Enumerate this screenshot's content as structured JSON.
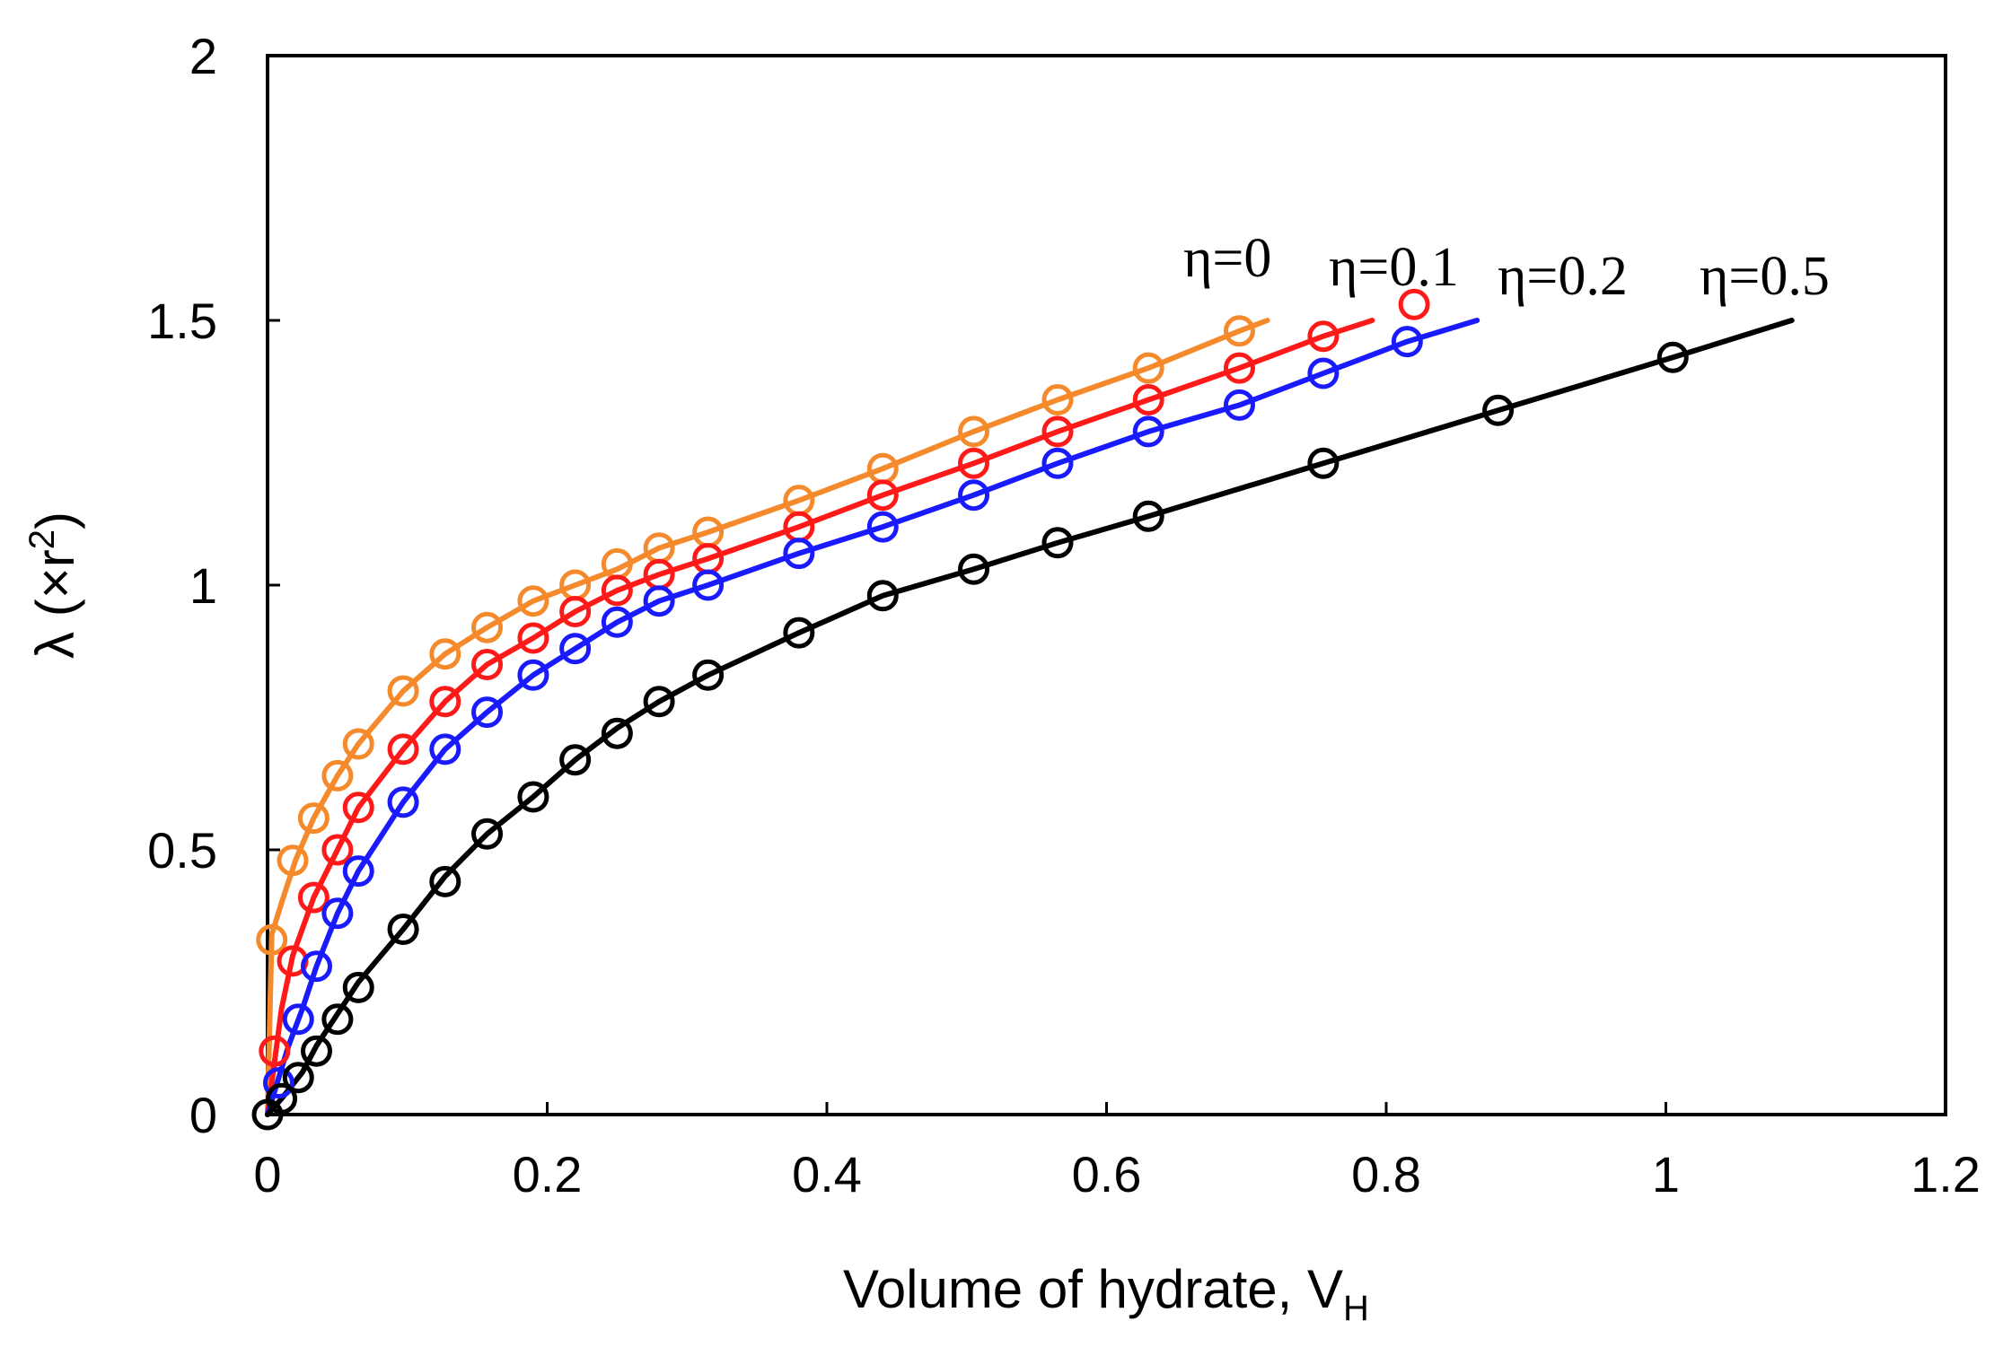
{
  "chart_data": {
    "type": "scatter",
    "xlim": [
      0,
      1.2
    ],
    "ylim": [
      0,
      2
    ],
    "x_ticks": [
      "0",
      "0.2",
      "0.4",
      "0.6",
      "0.8",
      "1",
      "1.2"
    ],
    "y_ticks": [
      "0",
      "0.5",
      "1",
      "1.5",
      "2"
    ],
    "xlabel": {
      "main": "Volume of hydrate, V",
      "sub": "H"
    },
    "ylabel": {
      "pre": "λ (×r",
      "sup": "2",
      "post": ")"
    },
    "grid": false,
    "series": [
      {
        "name": "η=0",
        "color": "#F58A2C",
        "line": [
          [
            0,
            0
          ],
          [
            0.003,
            0.34
          ],
          [
            0.01,
            0.4
          ],
          [
            0.02,
            0.48
          ],
          [
            0.033,
            0.56
          ],
          [
            0.05,
            0.64
          ],
          [
            0.065,
            0.7
          ],
          [
            0.097,
            0.8
          ],
          [
            0.127,
            0.87
          ],
          [
            0.157,
            0.92
          ],
          [
            0.19,
            0.97
          ],
          [
            0.22,
            1.0
          ],
          [
            0.25,
            1.03
          ],
          [
            0.28,
            1.07
          ],
          [
            0.315,
            1.1
          ],
          [
            0.38,
            1.16
          ],
          [
            0.44,
            1.22
          ],
          [
            0.505,
            1.29
          ],
          [
            0.565,
            1.35
          ],
          [
            0.63,
            1.41
          ],
          [
            0.695,
            1.48
          ],
          [
            0.715,
            1.5
          ]
        ],
        "points": [
          [
            0.003,
            0.33
          ],
          [
            0.018,
            0.48
          ],
          [
            0.033,
            0.56
          ],
          [
            0.05,
            0.64
          ],
          [
            0.065,
            0.7
          ],
          [
            0.097,
            0.8
          ],
          [
            0.127,
            0.87
          ],
          [
            0.157,
            0.92
          ],
          [
            0.19,
            0.97
          ],
          [
            0.22,
            1.0
          ],
          [
            0.25,
            1.04
          ],
          [
            0.28,
            1.07
          ],
          [
            0.315,
            1.1
          ],
          [
            0.38,
            1.16
          ],
          [
            0.44,
            1.22
          ],
          [
            0.505,
            1.29
          ],
          [
            0.565,
            1.35
          ],
          [
            0.63,
            1.41
          ],
          [
            0.695,
            1.48
          ]
        ]
      },
      {
        "name": "η=0.1",
        "color": "#FF1A1A",
        "line": [
          [
            0,
            0
          ],
          [
            0.005,
            0.1
          ],
          [
            0.01,
            0.2
          ],
          [
            0.018,
            0.3
          ],
          [
            0.033,
            0.41
          ],
          [
            0.05,
            0.5
          ],
          [
            0.065,
            0.58
          ],
          [
            0.097,
            0.69
          ],
          [
            0.127,
            0.78
          ],
          [
            0.157,
            0.85
          ],
          [
            0.19,
            0.9
          ],
          [
            0.22,
            0.95
          ],
          [
            0.25,
            0.99
          ],
          [
            0.28,
            1.02
          ],
          [
            0.315,
            1.05
          ],
          [
            0.38,
            1.11
          ],
          [
            0.44,
            1.17
          ],
          [
            0.505,
            1.23
          ],
          [
            0.565,
            1.29
          ],
          [
            0.63,
            1.35
          ],
          [
            0.695,
            1.41
          ],
          [
            0.755,
            1.47
          ],
          [
            0.79,
            1.5
          ]
        ],
        "points": [
          [
            0.005,
            0.12
          ],
          [
            0.018,
            0.29
          ],
          [
            0.033,
            0.41
          ],
          [
            0.05,
            0.5
          ],
          [
            0.065,
            0.58
          ],
          [
            0.097,
            0.69
          ],
          [
            0.127,
            0.78
          ],
          [
            0.157,
            0.85
          ],
          [
            0.19,
            0.9
          ],
          [
            0.22,
            0.95
          ],
          [
            0.25,
            0.99
          ],
          [
            0.28,
            1.02
          ],
          [
            0.315,
            1.05
          ],
          [
            0.38,
            1.11
          ],
          [
            0.44,
            1.17
          ],
          [
            0.505,
            1.23
          ],
          [
            0.565,
            1.29
          ],
          [
            0.63,
            1.35
          ],
          [
            0.695,
            1.41
          ],
          [
            0.755,
            1.47
          ],
          [
            0.82,
            1.53
          ]
        ]
      },
      {
        "name": "η=0.2",
        "color": "#1A1AFF",
        "line": [
          [
            0,
            0
          ],
          [
            0.008,
            0.07
          ],
          [
            0.015,
            0.13
          ],
          [
            0.025,
            0.2
          ],
          [
            0.035,
            0.28
          ],
          [
            0.05,
            0.38
          ],
          [
            0.065,
            0.46
          ],
          [
            0.097,
            0.59
          ],
          [
            0.127,
            0.69
          ],
          [
            0.157,
            0.76
          ],
          [
            0.19,
            0.83
          ],
          [
            0.22,
            0.88
          ],
          [
            0.25,
            0.93
          ],
          [
            0.28,
            0.97
          ],
          [
            0.315,
            1.0
          ],
          [
            0.38,
            1.06
          ],
          [
            0.44,
            1.11
          ],
          [
            0.505,
            1.17
          ],
          [
            0.565,
            1.23
          ],
          [
            0.63,
            1.29
          ],
          [
            0.695,
            1.34
          ],
          [
            0.755,
            1.4
          ],
          [
            0.815,
            1.46
          ],
          [
            0.865,
            1.5
          ]
        ],
        "points": [
          [
            0.008,
            0.06
          ],
          [
            0.022,
            0.18
          ],
          [
            0.035,
            0.28
          ],
          [
            0.05,
            0.38
          ],
          [
            0.065,
            0.46
          ],
          [
            0.097,
            0.59
          ],
          [
            0.127,
            0.69
          ],
          [
            0.157,
            0.76
          ],
          [
            0.19,
            0.83
          ],
          [
            0.22,
            0.88
          ],
          [
            0.25,
            0.93
          ],
          [
            0.28,
            0.97
          ],
          [
            0.315,
            1.0
          ],
          [
            0.38,
            1.06
          ],
          [
            0.44,
            1.11
          ],
          [
            0.505,
            1.17
          ],
          [
            0.565,
            1.23
          ],
          [
            0.63,
            1.29
          ],
          [
            0.695,
            1.34
          ],
          [
            0.755,
            1.4
          ],
          [
            0.815,
            1.46
          ]
        ]
      },
      {
        "name": "η=0.5",
        "color": "#000000",
        "line": [
          [
            0,
            0
          ],
          [
            0.01,
            0.03
          ],
          [
            0.025,
            0.08
          ],
          [
            0.035,
            0.13
          ],
          [
            0.05,
            0.19
          ],
          [
            0.065,
            0.25
          ],
          [
            0.097,
            0.35
          ],
          [
            0.127,
            0.45
          ],
          [
            0.157,
            0.53
          ],
          [
            0.19,
            0.6
          ],
          [
            0.22,
            0.67
          ],
          [
            0.25,
            0.73
          ],
          [
            0.28,
            0.78
          ],
          [
            0.315,
            0.83
          ],
          [
            0.38,
            0.91
          ],
          [
            0.44,
            0.98
          ],
          [
            0.505,
            1.03
          ],
          [
            0.565,
            1.08
          ],
          [
            0.63,
            1.13
          ],
          [
            0.755,
            1.23
          ],
          [
            0.88,
            1.33
          ],
          [
            1.005,
            1.43
          ],
          [
            1.09,
            1.5
          ]
        ],
        "points": [
          [
            0,
            0
          ],
          [
            0.01,
            0.03
          ],
          [
            0.022,
            0.07
          ],
          [
            0.035,
            0.12
          ],
          [
            0.05,
            0.18
          ],
          [
            0.065,
            0.24
          ],
          [
            0.097,
            0.35
          ],
          [
            0.127,
            0.44
          ],
          [
            0.157,
            0.53
          ],
          [
            0.19,
            0.6
          ],
          [
            0.22,
            0.67
          ],
          [
            0.25,
            0.72
          ],
          [
            0.28,
            0.78
          ],
          [
            0.315,
            0.83
          ],
          [
            0.38,
            0.91
          ],
          [
            0.44,
            0.98
          ],
          [
            0.505,
            1.03
          ],
          [
            0.565,
            1.08
          ],
          [
            0.63,
            1.13
          ],
          [
            0.755,
            1.23
          ],
          [
            0.88,
            1.33
          ],
          [
            1.005,
            1.43
          ]
        ]
      }
    ]
  }
}
